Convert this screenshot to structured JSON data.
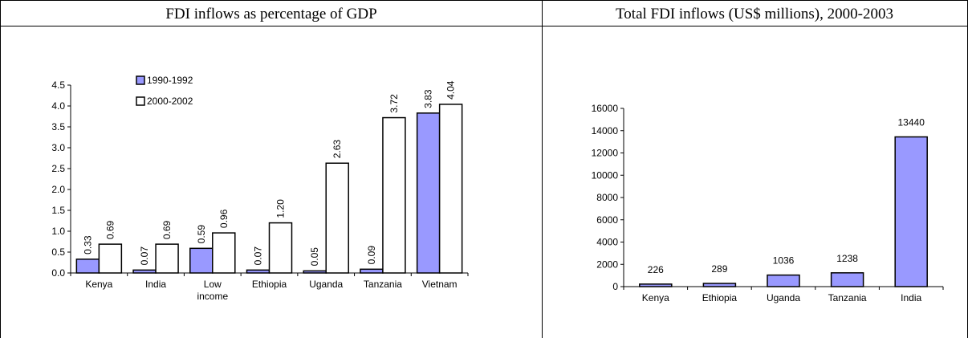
{
  "chart_data": [
    {
      "type": "bar",
      "title": "FDI inflows as percentage of GDP",
      "categories": [
        "Kenya",
        "India",
        "Low income",
        "Ethiopia",
        "Uganda",
        "Tanzania",
        "Vietnam"
      ],
      "series": [
        {
          "name": "1990-1992",
          "color": "#9999ff",
          "values": [
            0.33,
            0.07,
            0.59,
            0.07,
            0.05,
            0.09,
            3.83
          ]
        },
        {
          "name": "2000-2002",
          "color": "#ffffff",
          "values": [
            0.69,
            0.69,
            0.96,
            1.2,
            2.63,
            3.72,
            4.04
          ],
          "value_labels": [
            "0.69",
            "0.69",
            "0.96",
            "1.20",
            "2.63",
            "3.72",
            "4.04"
          ]
        }
      ],
      "ylim": [
        0,
        4.5
      ],
      "yticks": [
        {
          "value": 0,
          "label": "0.0"
        },
        {
          "value": 0.5,
          "label": "0.5"
        },
        {
          "value": 1,
          "label": "1.0"
        },
        {
          "value": 1.5,
          "label": "1.5"
        },
        {
          "value": 2,
          "label": "2.0"
        },
        {
          "value": 2.5,
          "label": "2.5"
        },
        {
          "value": 3,
          "label": "3.0"
        },
        {
          "value": 3.5,
          "label": "3.5"
        },
        {
          "value": 4,
          "label": "4.0"
        },
        {
          "value": 4.5,
          "label": "4.5"
        }
      ],
      "legend": "upper left"
    },
    {
      "type": "bar",
      "title": "Total FDI inflows (US$ millions), 2000-2003",
      "categories": [
        "Kenya",
        "Ethiopia",
        "Uganda",
        "Tanzania",
        "India"
      ],
      "values": [
        226,
        289,
        1036,
        1238,
        13440
      ],
      "color": "#9999ff",
      "ylim": [
        0,
        16000
      ],
      "yticks": [
        0,
        2000,
        4000,
        6000,
        8000,
        10000,
        12000,
        14000,
        16000
      ]
    }
  ]
}
